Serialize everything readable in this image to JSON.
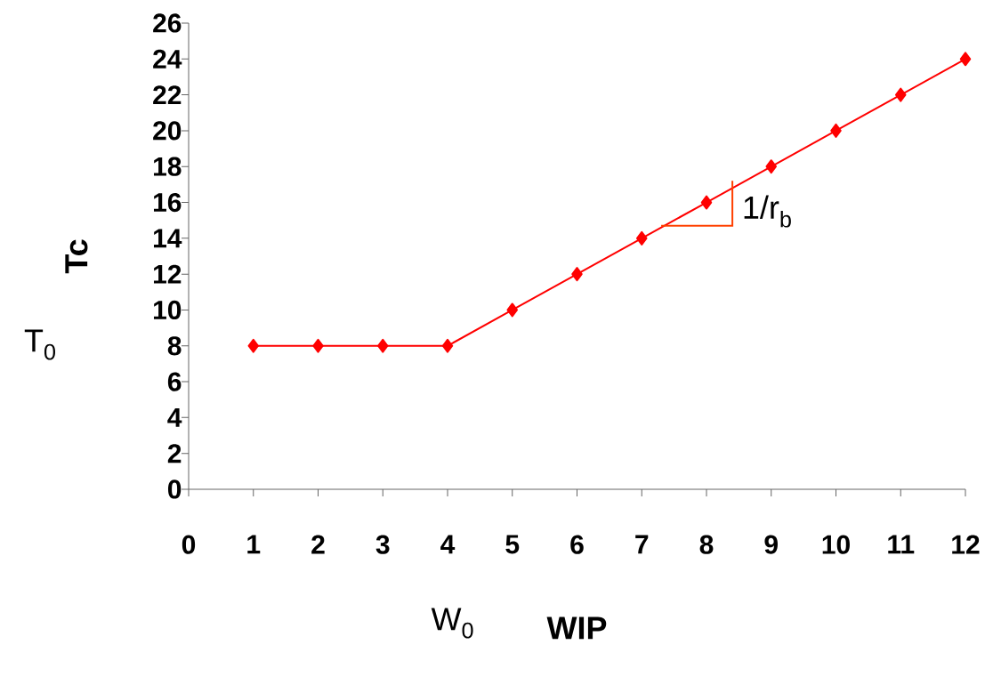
{
  "chart_data": {
    "type": "line",
    "xlabel": "WIP",
    "ylabel": "Tc",
    "x": [
      1,
      2,
      3,
      4,
      5,
      6,
      7,
      8,
      9,
      10,
      11,
      12
    ],
    "series": [
      {
        "color": "#ff0000",
        "values": [
          8,
          8,
          8,
          8,
          10,
          12,
          14,
          16,
          18,
          20,
          22,
          24
        ]
      }
    ],
    "xlim": [
      0,
      12
    ],
    "xticks": [
      0,
      1,
      2,
      3,
      4,
      5,
      6,
      7,
      8,
      9,
      10,
      11,
      12
    ],
    "ylim": [
      0,
      26
    ],
    "yticks": [
      0,
      2,
      4,
      6,
      8,
      10,
      12,
      14,
      16,
      18,
      20,
      22,
      24,
      26
    ],
    "marker": "diamond",
    "line_style": "solid",
    "grid": false,
    "annotations": [
      "T$_{0}$",
      "W$_{0}$",
      {
        "text": "1/r$_{b}$",
        "x": 8,
        "y": 16
      }
    ]
  }
}
